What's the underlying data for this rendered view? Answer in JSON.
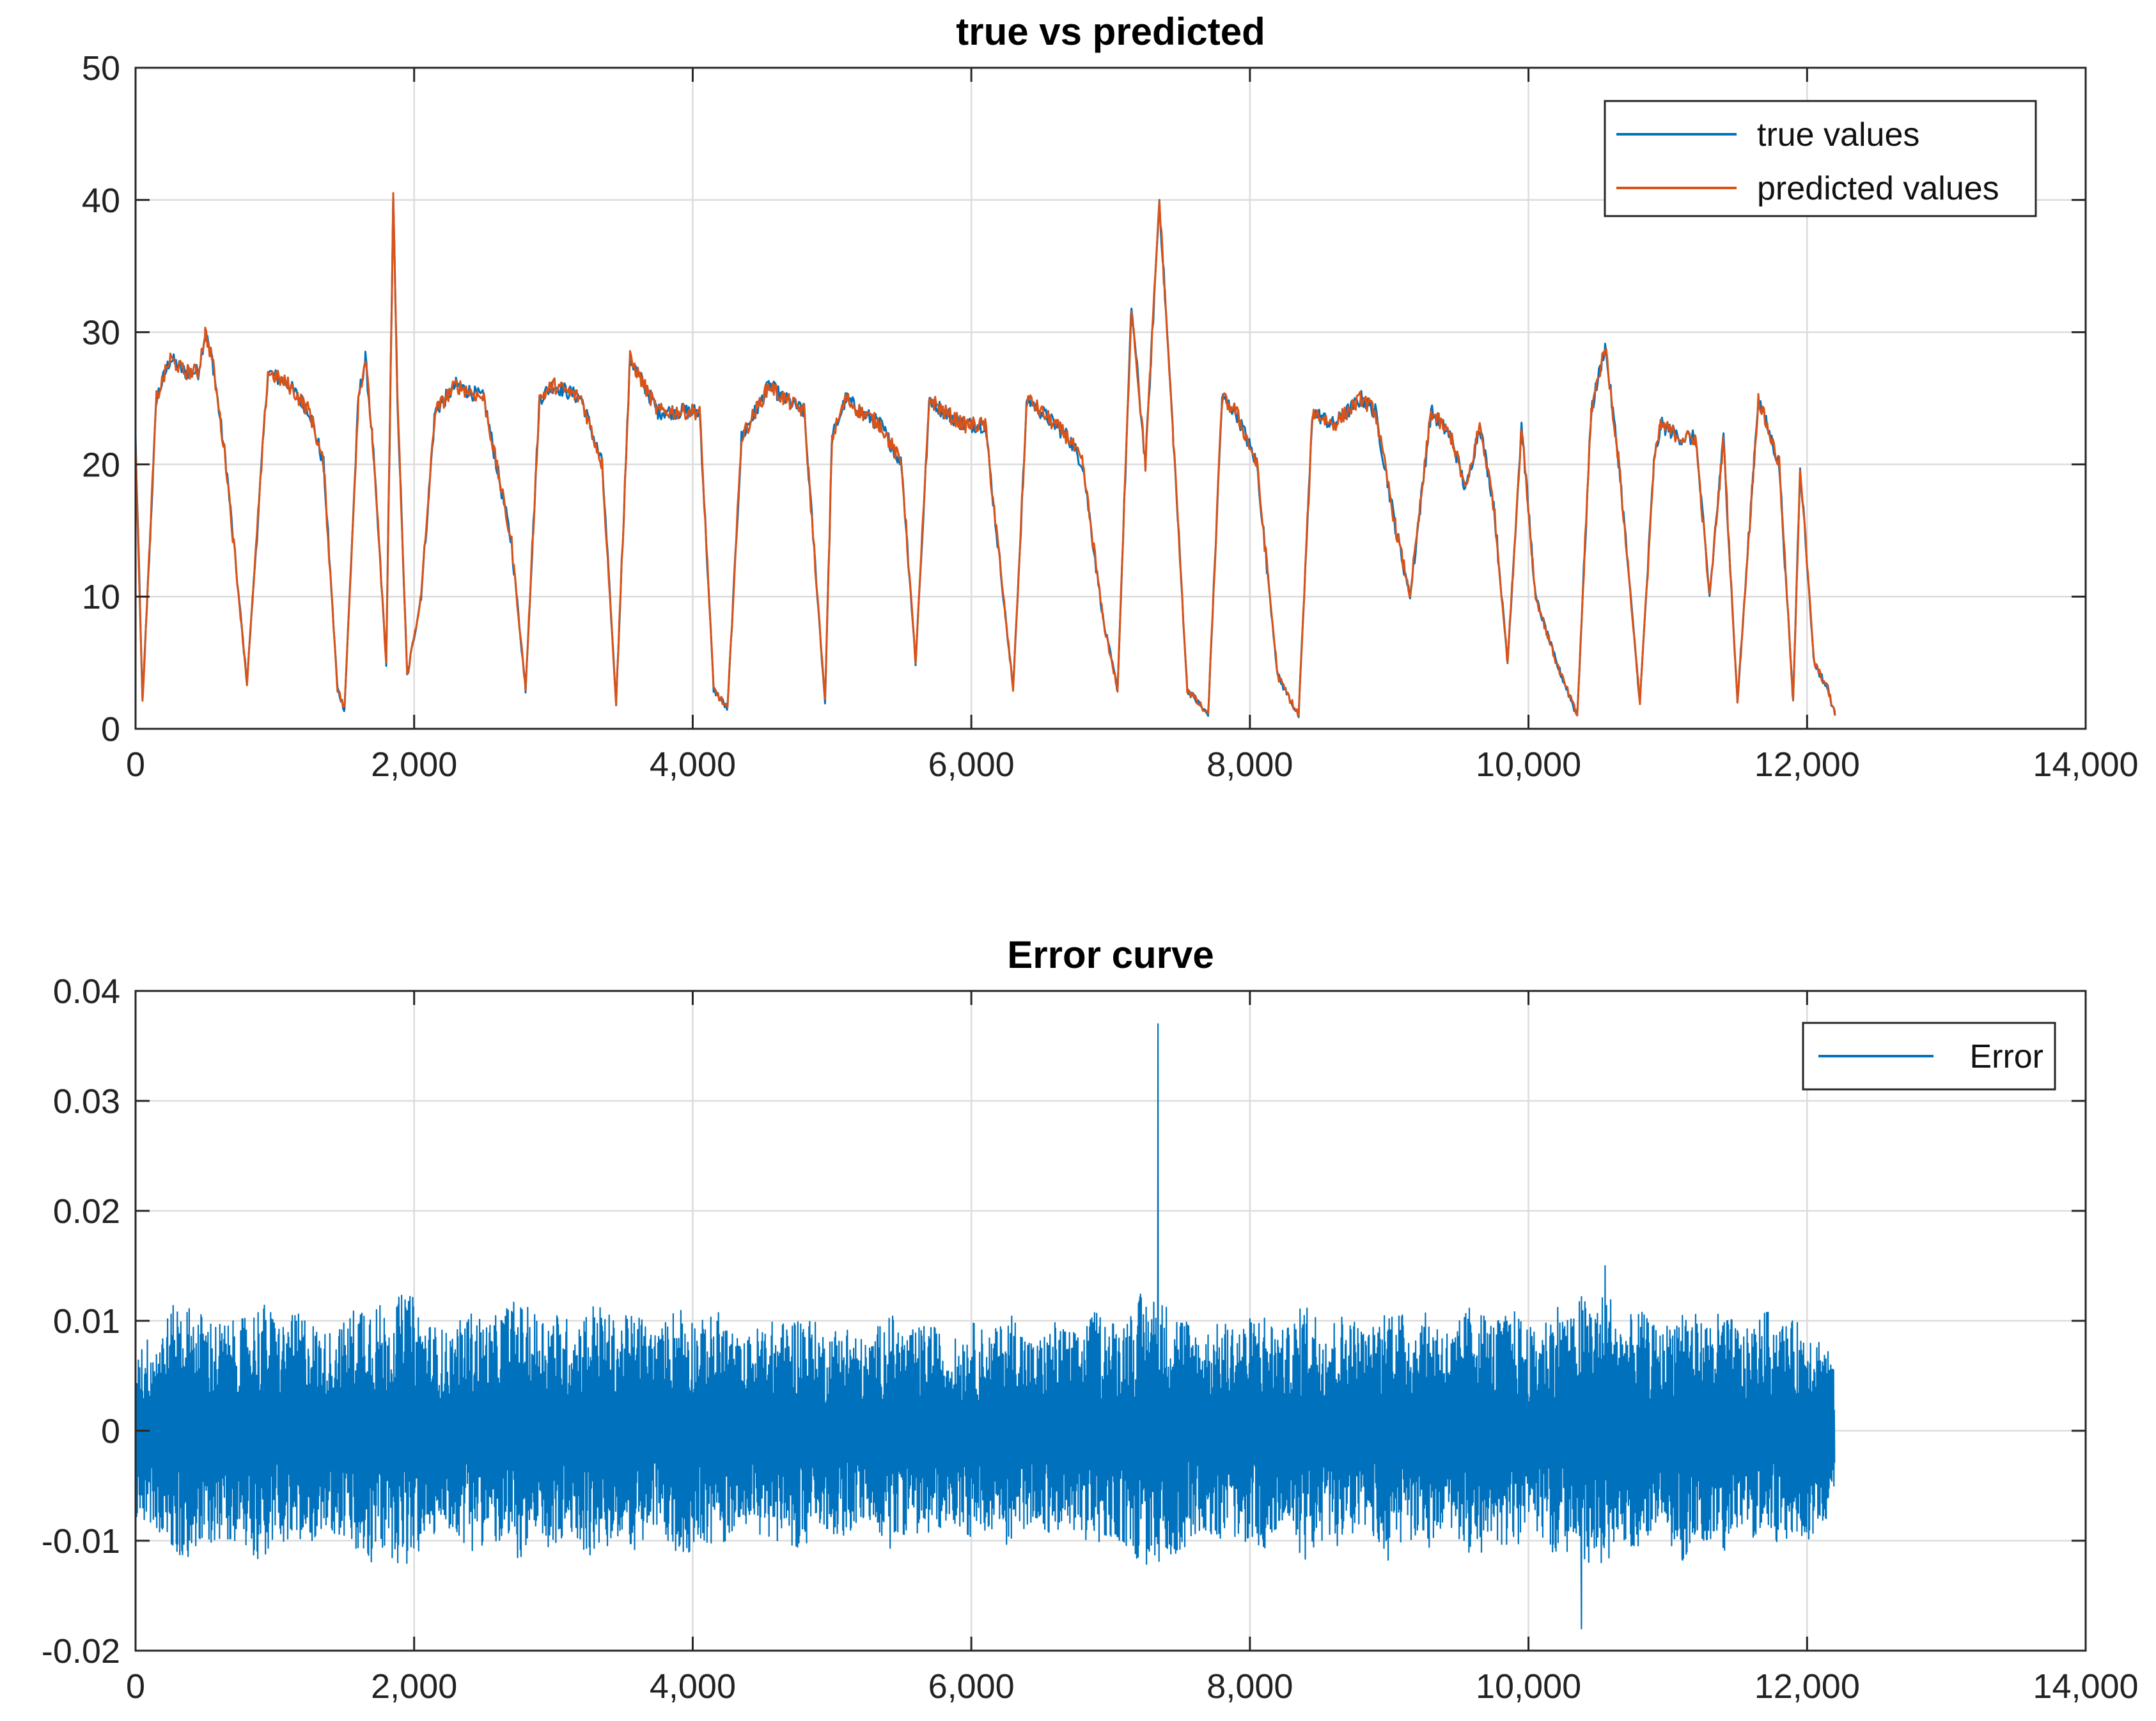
{
  "colors": {
    "true_values": "#0072BD",
    "predicted_values": "#D95319",
    "error": "#0072BD",
    "grid": "#dcdcdc",
    "axis": "#262626"
  },
  "chart_data": [
    {
      "type": "line",
      "title": "true vs predicted",
      "xlabel": "",
      "ylabel": "",
      "xlim": [
        0,
        14000
      ],
      "ylim": [
        0,
        50
      ],
      "xticks": [
        0,
        2000,
        4000,
        6000,
        8000,
        10000,
        12000,
        14000
      ],
      "xtick_labels": [
        "0",
        "2,000",
        "4,000",
        "6,000",
        "8,000",
        "10,000",
        "12,000",
        "14,000"
      ],
      "yticks": [
        0,
        10,
        20,
        30,
        40,
        50
      ],
      "ytick_labels": [
        "0",
        "10",
        "20",
        "30",
        "40",
        "50"
      ],
      "grid": true,
      "legend": "top-right",
      "series": [
        {
          "name": "true values",
          "color": "#0072BD",
          "x": [
            0,
            50,
            150,
            250,
            350,
            450,
            500,
            550,
            650,
            800,
            950,
            1100,
            1250,
            1350,
            1450,
            1500,
            1600,
            1650,
            1700,
            1800,
            1850,
            1880,
            1950,
            2050,
            2150,
            2300,
            2500,
            2700,
            2800,
            2900,
            3000,
            3200,
            3350,
            3450,
            3550,
            3650,
            3750,
            3900,
            4050,
            4150,
            4250,
            4350,
            4450,
            4550,
            4650,
            4800,
            4950,
            5000,
            5100,
            5200,
            5350,
            5500,
            5600,
            5700,
            5800,
            5950,
            6100,
            6300,
            6400,
            6600,
            6700,
            6800,
            6950,
            7050,
            7150,
            7250,
            7350,
            7450,
            7550,
            7700,
            7800,
            7900,
            8050,
            8200,
            8350,
            8450,
            8600,
            8800,
            8900,
            9050,
            9150,
            9300,
            9450,
            9550,
            9650,
            9750,
            9850,
            9950,
            10050,
            10200,
            10350,
            10450,
            10550,
            10650,
            10800,
            10900,
            10950,
            11100,
            11200,
            11300,
            11400,
            11500,
            11650,
            11800,
            11900,
            11950,
            12050,
            12150,
            12200
          ],
          "values": [
            22,
            2,
            25,
            28,
            27,
            27,
            30,
            28,
            20,
            3.5,
            27,
            26,
            24,
            20,
            3,
            1.5,
            25,
            28,
            22,
            5,
            40,
            25,
            4,
            10,
            24,
            26,
            25,
            14,
            3,
            25,
            26,
            25,
            20,
            2,
            28,
            26,
            24,
            24,
            24,
            3,
            1.5,
            22,
            24,
            26,
            25,
            24,
            2,
            22,
            25,
            24,
            23,
            20,
            5,
            25,
            24,
            23,
            23,
            3,
            25,
            23,
            22,
            20,
            8,
            3,
            32,
            20,
            40,
            22,
            3,
            1,
            25,
            24,
            20,
            4,
            1,
            24,
            23,
            25,
            24,
            15,
            10,
            24,
            22,
            18,
            23,
            17,
            5,
            23,
            10,
            5,
            1,
            24,
            29,
            20,
            2,
            20,
            23,
            22,
            22,
            10,
            22,
            2,
            25,
            20,
            2,
            20,
            5,
            3,
            1
          ]
        },
        {
          "name": "predicted values",
          "color": "#D95319",
          "x": [
            0,
            50,
            150,
            250,
            350,
            450,
            500,
            550,
            650,
            800,
            950,
            1100,
            1250,
            1350,
            1450,
            1500,
            1600,
            1650,
            1700,
            1800,
            1850,
            1880,
            1950,
            2050,
            2150,
            2300,
            2500,
            2700,
            2800,
            2900,
            3000,
            3200,
            3350,
            3450,
            3550,
            3650,
            3750,
            3900,
            4050,
            4150,
            4250,
            4350,
            4450,
            4550,
            4650,
            4800,
            4950,
            5000,
            5100,
            5200,
            5350,
            5500,
            5600,
            5700,
            5800,
            5950,
            6100,
            6300,
            6400,
            6600,
            6700,
            6800,
            6950,
            7050,
            7150,
            7250,
            7350,
            7450,
            7550,
            7700,
            7800,
            7900,
            8050,
            8200,
            8350,
            8450,
            8600,
            8800,
            8900,
            9050,
            9150,
            9300,
            9450,
            9550,
            9650,
            9750,
            9850,
            9950,
            10050,
            10200,
            10350,
            10450,
            10550,
            10650,
            10800,
            10900,
            10950,
            11100,
            11200,
            11300,
            11400,
            11500,
            11650,
            11800,
            11900,
            11950,
            12050,
            12150,
            12200
          ],
          "values": [
            22,
            2,
            25,
            28,
            27,
            27,
            30,
            28,
            20,
            3.5,
            27,
            26,
            24,
            20,
            3,
            1.5,
            25,
            28,
            22,
            5,
            40,
            25,
            4,
            10,
            24,
            26,
            25,
            14,
            3,
            25,
            26,
            25,
            20,
            2,
            28,
            26,
            24,
            24,
            24,
            3,
            1.5,
            22,
            24,
            26,
            25,
            24,
            2,
            22,
            25,
            24,
            23,
            20,
            5,
            25,
            24,
            23,
            23,
            3,
            25,
            23,
            22,
            20,
            8,
            3,
            32,
            20,
            40,
            22,
            3,
            1,
            25,
            24,
            20,
            4,
            1,
            24,
            23,
            25,
            24,
            15,
            10,
            24,
            22,
            18,
            23,
            17,
            5,
            23,
            10,
            5,
            1,
            24,
            29,
            20,
            2,
            20,
            23,
            22,
            22,
            10,
            22,
            2,
            25,
            20,
            2,
            20,
            5,
            3,
            1
          ]
        }
      ]
    },
    {
      "type": "line",
      "title": "Error curve",
      "xlabel": "",
      "ylabel": "",
      "xlim": [
        0,
        14000
      ],
      "ylim": [
        -0.02,
        0.04
      ],
      "xticks": [
        0,
        2000,
        4000,
        6000,
        8000,
        10000,
        12000,
        14000
      ],
      "xtick_labels": [
        "0",
        "2,000",
        "4,000",
        "6,000",
        "8,000",
        "10,000",
        "12,000",
        "14,000"
      ],
      "yticks": [
        -0.02,
        -0.01,
        0,
        0.01,
        0.02,
        0.03,
        0.04
      ],
      "ytick_labels": [
        "-0.02",
        "-0.01",
        "0",
        "0.01",
        "0.02",
        "0.03",
        "0.04"
      ],
      "grid": true,
      "legend": "top-right",
      "series": [
        {
          "name": "Error",
          "color": "#0072BD",
          "x": [
            0,
            150,
            300,
            450,
            600,
            750,
            900,
            1050,
            1200,
            1350,
            1500,
            1650,
            1800,
            1950,
            2100,
            2250,
            2400,
            2550,
            2700,
            2850,
            3000,
            3150,
            3300,
            3450,
            3600,
            3750,
            3900,
            4050,
            4200,
            4350,
            4500,
            4650,
            4800,
            4950,
            5100,
            5250,
            5400,
            5550,
            5700,
            5850,
            6000,
            6150,
            6300,
            6450,
            6600,
            6750,
            6900,
            7050,
            7200,
            7340,
            7360,
            7500,
            7650,
            7800,
            7950,
            8100,
            8250,
            8400,
            8550,
            8700,
            8850,
            9000,
            9150,
            9300,
            9450,
            9600,
            9750,
            9900,
            10050,
            10200,
            10350,
            10380,
            10500,
            10550,
            10650,
            10800,
            10950,
            11100,
            11250,
            11400,
            11550,
            11700,
            11850,
            12000,
            12150,
            12200
          ],
          "values": [
            0.008,
            -0.009,
            0.012,
            -0.011,
            0.01,
            -0.01,
            0.012,
            -0.01,
            0.011,
            -0.009,
            0.01,
            0.013,
            -0.011,
            -0.013,
            0.01,
            -0.009,
            0.011,
            -0.01,
            0.012,
            -0.011,
            0.011,
            -0.01,
            0.012,
            -0.01,
            0.011,
            -0.009,
            0.012,
            -0.01,
            0.011,
            -0.008,
            0.01,
            -0.01,
            0.011,
            -0.009,
            0.01,
            -0.008,
            0.011,
            -0.009,
            0.01,
            -0.008,
            0.01,
            -0.009,
            0.011,
            -0.008,
            0.01,
            -0.009,
            0.011,
            -0.01,
            0.012,
            0.037,
            -0.012,
            0.011,
            -0.009,
            0.01,
            -0.01,
            0.011,
            -0.009,
            0.012,
            -0.01,
            0.011,
            -0.009,
            0.012,
            -0.01,
            0.011,
            -0.009,
            0.012,
            -0.01,
            0.011,
            -0.009,
            0.012,
            -0.01,
            -0.018,
            0.011,
            0.015,
            -0.01,
            0.011,
            -0.009,
            0.012,
            -0.01,
            0.011,
            -0.009,
            0.011,
            -0.01,
            0.01,
            -0.008,
            0.005
          ]
        }
      ]
    }
  ]
}
